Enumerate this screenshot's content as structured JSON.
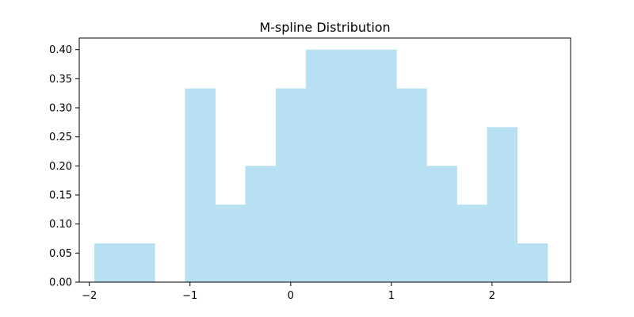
{
  "chart_data": {
    "type": "bar",
    "title": "M-spline Distribution",
    "xlabel": "",
    "ylabel": "",
    "xlim": [
      -2.1,
      2.78
    ],
    "ylim": [
      0,
      0.42
    ],
    "x_ticks": [
      -2,
      -1,
      0,
      1,
      2
    ],
    "x_tick_labels": [
      "−2",
      "−1",
      "0",
      "1",
      "2"
    ],
    "y_ticks": [
      0.0,
      0.05,
      0.1,
      0.15,
      0.2,
      0.25,
      0.3,
      0.35,
      0.4
    ],
    "y_tick_labels": [
      "0.00",
      "0.05",
      "0.10",
      "0.15",
      "0.20",
      "0.25",
      "0.30",
      "0.35",
      "0.40"
    ],
    "grid": false,
    "legend": "none",
    "bar_color": "#b7e0f2",
    "bins": [
      {
        "x0": -1.95,
        "x1": -1.65,
        "value": 0.0667
      },
      {
        "x0": -1.65,
        "x1": -1.35,
        "value": 0.0667
      },
      {
        "x0": -1.35,
        "x1": -1.05,
        "value": 0.0
      },
      {
        "x0": -1.05,
        "x1": -0.75,
        "value": 0.3333
      },
      {
        "x0": -0.75,
        "x1": -0.45,
        "value": 0.1333
      },
      {
        "x0": -0.45,
        "x1": -0.15,
        "value": 0.2
      },
      {
        "x0": -0.15,
        "x1": 0.15,
        "value": 0.3333
      },
      {
        "x0": 0.15,
        "x1": 0.45,
        "value": 0.4
      },
      {
        "x0": 0.45,
        "x1": 0.75,
        "value": 0.4
      },
      {
        "x0": 0.75,
        "x1": 1.05,
        "value": 0.4
      },
      {
        "x0": 1.05,
        "x1": 1.35,
        "value": 0.3333
      },
      {
        "x0": 1.35,
        "x1": 1.65,
        "value": 0.2
      },
      {
        "x0": 1.65,
        "x1": 1.95,
        "value": 0.1333
      },
      {
        "x0": 1.95,
        "x1": 2.25,
        "value": 0.2667
      },
      {
        "x0": 2.25,
        "x1": 2.55,
        "value": 0.0667
      }
    ]
  }
}
